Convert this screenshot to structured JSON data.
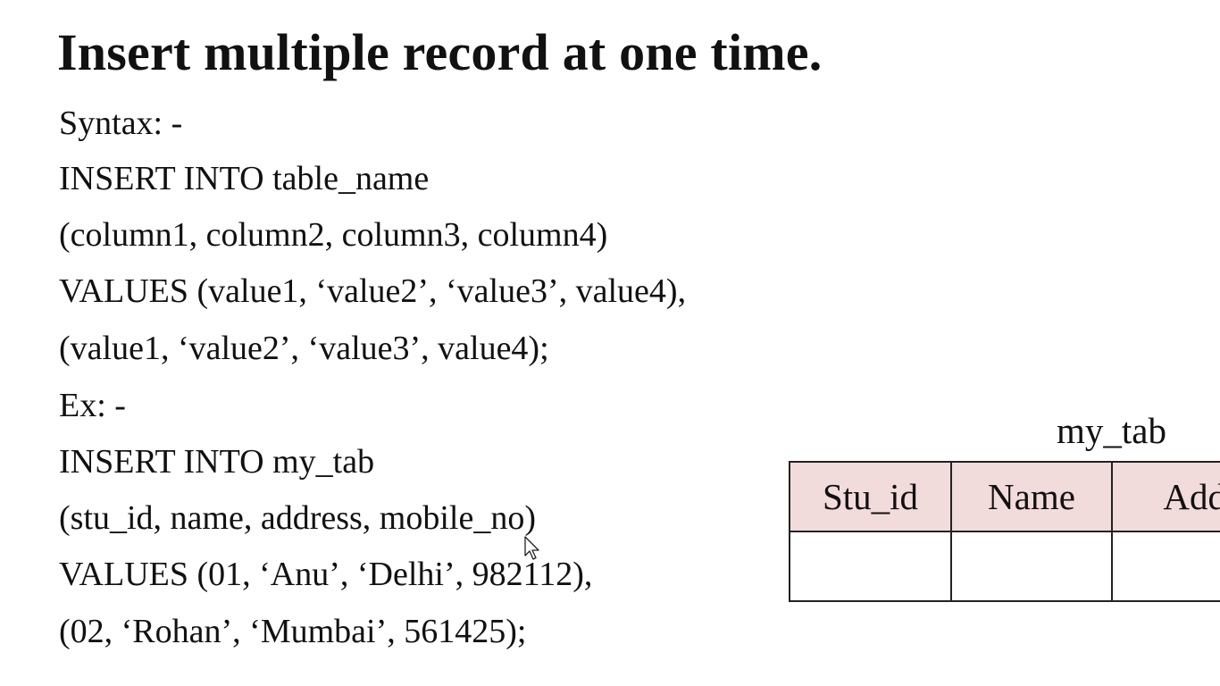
{
  "slide": {
    "title": "Insert multiple record at one time.",
    "lines": [
      "Syntax: -",
      "INSERT INTO table_name",
      "(column1, column2, column3, column4)",
      "VALUES (value1, ‘value2’, ‘value3’, value4),",
      "(value1, ‘value2’, ‘value3’, value4);",
      "Ex: -",
      "INSERT INTO my_tab",
      "(stu_id, name, address, mobile_no)",
      "VALUES (01, ‘Anu’, ‘Delhi’, 982112),",
      "(02, ‘Rohan’, ‘Mumbai’, 561425);"
    ]
  },
  "table": {
    "caption": "my_tab",
    "headers": [
      "Stu_id",
      "Name",
      "Addr"
    ],
    "header_color": "#f2dcdb",
    "rows": [
      [
        "",
        "",
        ""
      ]
    ]
  },
  "icons": {
    "pointer": "mouse-pointer-icon"
  }
}
